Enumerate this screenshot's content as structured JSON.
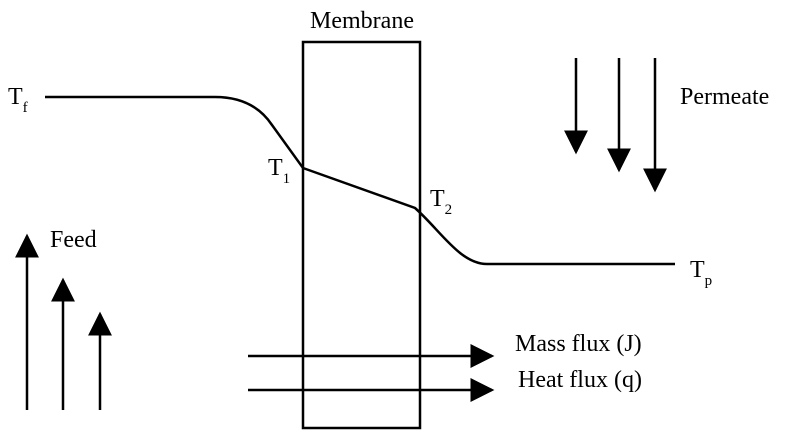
{
  "labels": {
    "membrane": "Membrane",
    "permeate": "Permeate",
    "feed": "Feed",
    "mass_flux": "Mass flux (J)",
    "heat_flux": "Heat flux (q)",
    "t_feed": {
      "main": "T",
      "sub": "f"
    },
    "t_1": {
      "main": "T",
      "sub": "1"
    },
    "t_2": {
      "main": "T",
      "sub": "2"
    },
    "t_permeate": {
      "main": "T",
      "sub": "p"
    }
  }
}
